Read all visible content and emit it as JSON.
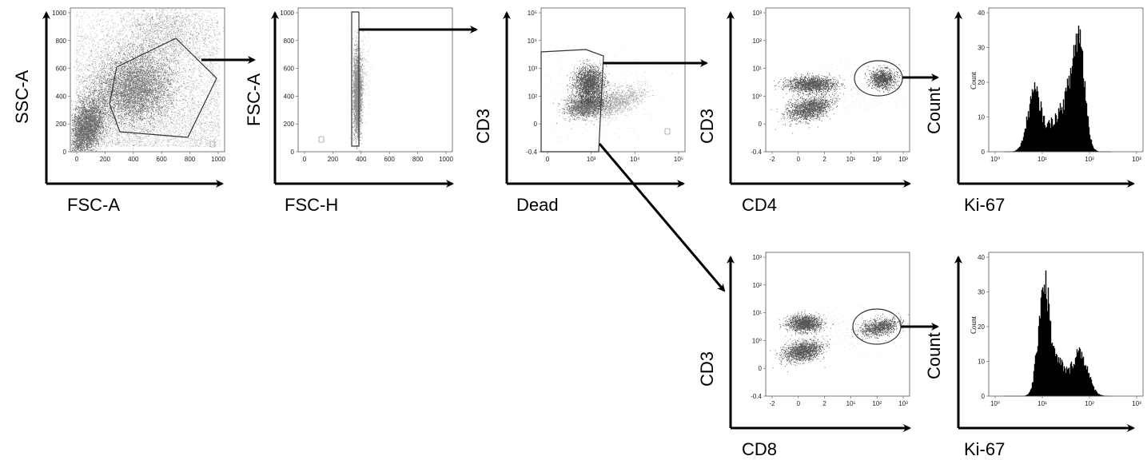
{
  "colors": {
    "ink": "#000000",
    "frame": "#555555",
    "dots": "#111111",
    "background": "#ffffff"
  },
  "panels": [
    {
      "id": "scatter-fsc-ssc",
      "kind": "scatter",
      "xlabel": "FSC-A",
      "ylabel": "SSC-A",
      "x_ticks": [
        "0",
        "200",
        "400",
        "600",
        "800",
        "1000"
      ],
      "y_ticks": [
        "1000",
        "800",
        "600",
        "400",
        "200",
        "0"
      ]
    },
    {
      "id": "scatter-fsch-fsca",
      "kind": "scatter",
      "xlabel": "FSC-H",
      "ylabel": "FSC-A",
      "x_ticks": [
        "0",
        "200",
        "400",
        "600",
        "800",
        "1000"
      ],
      "y_ticks": [
        "1000",
        "800",
        "600",
        "400",
        "200",
        "0"
      ]
    },
    {
      "id": "scatter-dead-cd3",
      "kind": "scatter",
      "xlabel": "Dead",
      "ylabel": "CD3",
      "x_ticks": [
        "0",
        "10³",
        "10⁴",
        "10⁵"
      ],
      "y_ticks": [
        "10⁵",
        "10⁴",
        "10³",
        "10²",
        "0",
        "-0.4"
      ]
    },
    {
      "id": "scatter-cd4-cd3",
      "kind": "scatter",
      "xlabel": "CD4",
      "ylabel": "CD3",
      "x_ticks": [
        "-2",
        "0",
        "2",
        "10¹",
        "10²",
        "10³"
      ],
      "y_ticks": [
        "10³",
        "10²",
        "10¹",
        "10⁰",
        "0",
        "-0.4"
      ]
    },
    {
      "id": "hist-ki67-cd4",
      "kind": "histogram",
      "xlabel": "Ki-67",
      "ylabel": "Count",
      "inner_ylabel": "Count",
      "x_ticks": [
        "10⁰",
        "10¹",
        "10²",
        "10³"
      ],
      "y_ticks": [
        "40",
        "30",
        "20",
        "10",
        "0"
      ]
    },
    {
      "id": "scatter-cd8-cd3",
      "kind": "scatter",
      "xlabel": "CD8",
      "ylabel": "CD3",
      "x_ticks": [
        "-2",
        "0",
        "2",
        "10¹",
        "10²",
        "10³"
      ],
      "y_ticks": [
        "10³",
        "10²",
        "10¹",
        "10⁰",
        "0",
        "-0.4"
      ]
    },
    {
      "id": "hist-ki67-cd8",
      "kind": "histogram",
      "xlabel": "Ki-67",
      "ylabel": "Count",
      "inner_ylabel": "Count",
      "x_ticks": [
        "10⁰",
        "10¹",
        "10²",
        "10³"
      ],
      "y_ticks": [
        "40",
        "30",
        "20",
        "10",
        "0"
      ]
    }
  ]
}
